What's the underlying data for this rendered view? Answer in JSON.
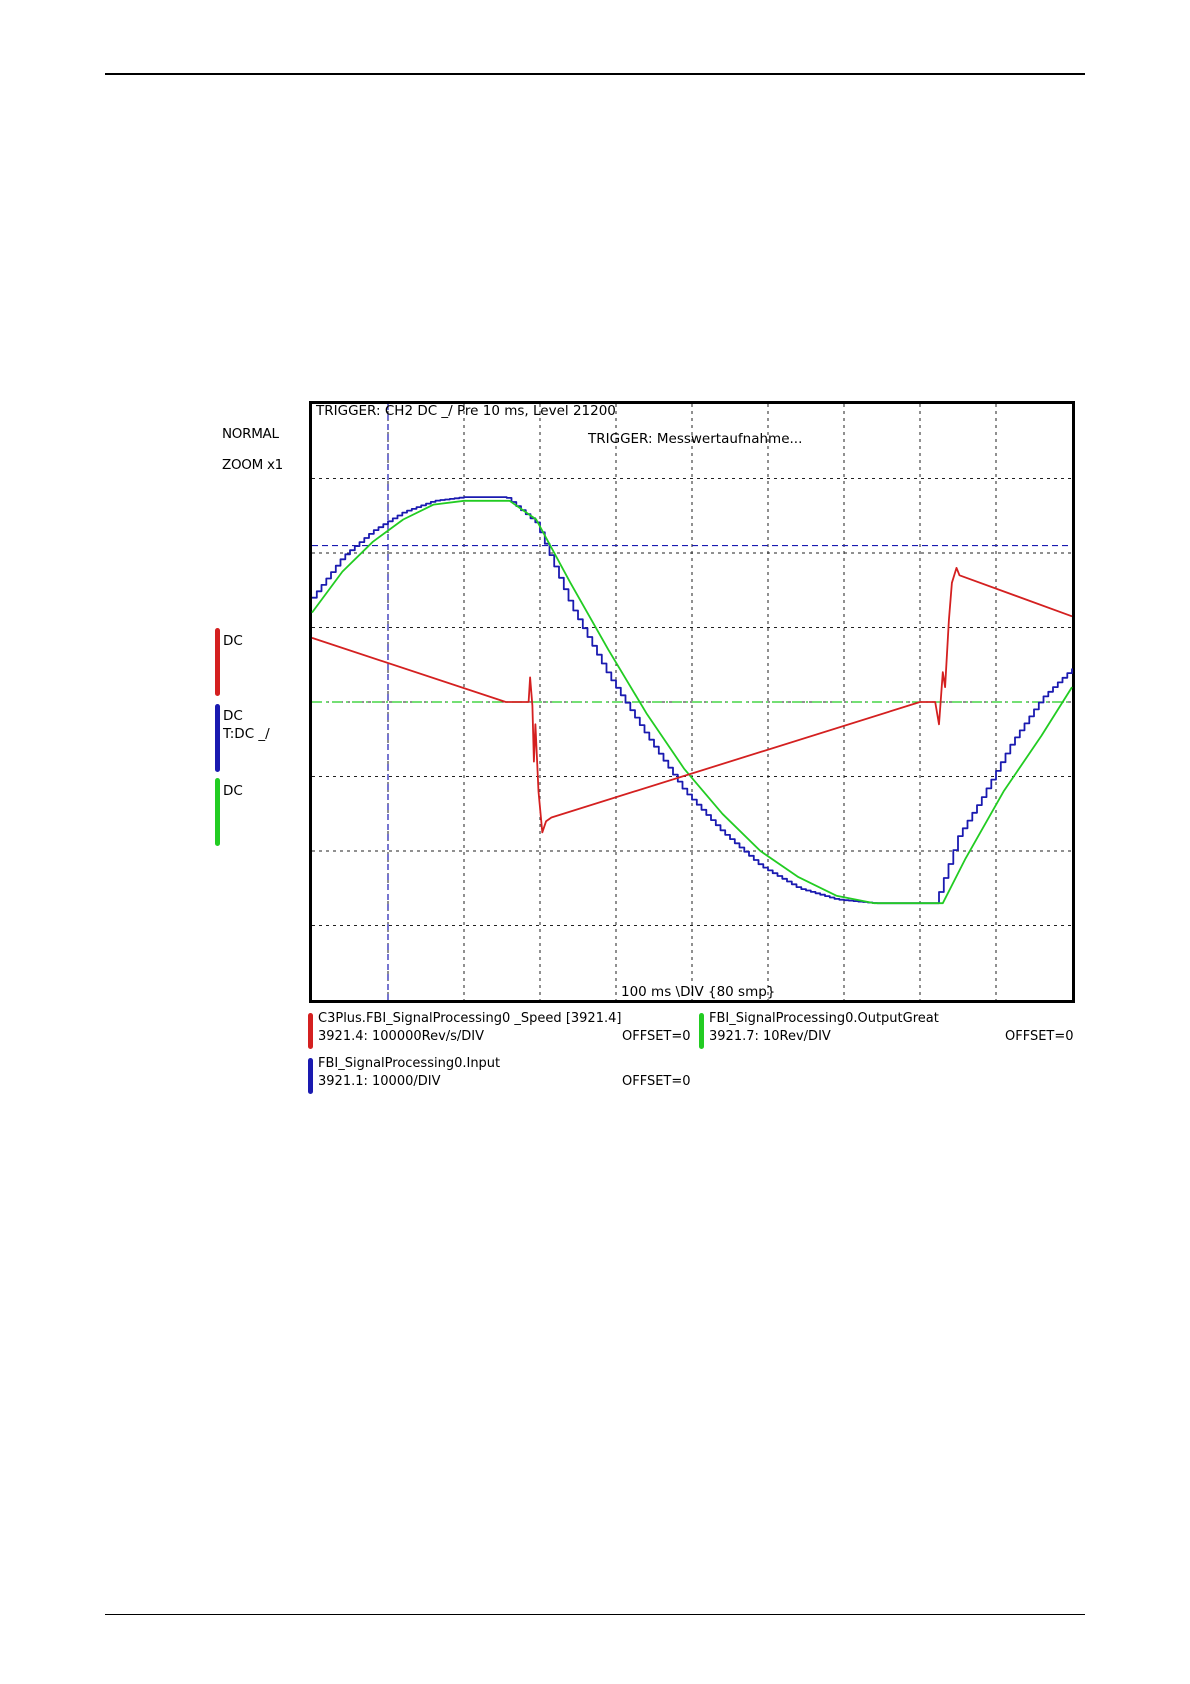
{
  "scope": {
    "mode": "NORMAL",
    "zoom": "ZOOM x1",
    "trigger_info": "TRIGGER: CH2 DC _/ Pre 10 ms, Level 21200",
    "trigger_status": "TRIGGER: Messwertaufnahme...",
    "timebase": "100 ms \\DIV {80 smp}"
  },
  "channels": [
    {
      "coupling": "DC",
      "trigger": "",
      "color": "#d42020"
    },
    {
      "coupling": "DC",
      "trigger": "T:DC _/",
      "color": "#1a1ab0"
    },
    {
      "coupling": "DC",
      "trigger": "",
      "color": "#22cc22"
    }
  ],
  "legend": [
    {
      "name": "C3Plus.FBI_SignalProcessing0 _Speed  [3921.4]",
      "scale": "3921.4:  100000Rev/s/DIV",
      "offset": "OFFSET=0",
      "color": "#d42020"
    },
    {
      "name": "FBI_SignalProcessing0.OutputGreat",
      "scale": "3921.7:  10Rev/DIV",
      "offset": "OFFSET=0",
      "color": "#22cc22"
    },
    {
      "name": "FBI_SignalProcessing0.Input",
      "scale": "3921.1:  10000/DIV",
      "offset": "OFFSET=0",
      "color": "#1a1ab0"
    }
  ],
  "chart_data": {
    "type": "line",
    "x_unit": "div",
    "y_unit": "div",
    "xlim": [
      0,
      10
    ],
    "ylim": [
      -4,
      4
    ],
    "grid": true,
    "grid_divisions": {
      "x": 10,
      "y": 8
    },
    "trigger_marker_x": 1,
    "trigger_level_y": 2.1,
    "series": [
      {
        "name": "C3Plus.FBI_SignalProcessing0 _Speed  [3921.4]",
        "color": "#d42020",
        "points": [
          [
            0,
            0.86
          ],
          [
            2.55,
            0.0
          ],
          [
            2.85,
            0.0
          ],
          [
            2.87,
            0.33
          ],
          [
            2.9,
            -0.05
          ],
          [
            2.92,
            -0.8
          ],
          [
            2.94,
            -0.3
          ],
          [
            2.98,
            -1.2
          ],
          [
            3.03,
            -1.75
          ],
          [
            3.08,
            -1.6
          ],
          [
            3.15,
            -1.55
          ],
          [
            8.0,
            0.0
          ],
          [
            8.2,
            0.0
          ],
          [
            8.25,
            -0.3
          ],
          [
            8.3,
            0.4
          ],
          [
            8.33,
            0.2
          ],
          [
            8.38,
            1.1
          ],
          [
            8.42,
            1.6
          ],
          [
            8.48,
            1.8
          ],
          [
            8.52,
            1.7
          ],
          [
            10,
            1.15
          ]
        ]
      },
      {
        "name": "FBI_SignalProcessing0.OutputGreat",
        "color": "#22cc22",
        "points": [
          [
            0,
            1.2
          ],
          [
            0.4,
            1.75
          ],
          [
            0.8,
            2.15
          ],
          [
            1.2,
            2.45
          ],
          [
            1.6,
            2.65
          ],
          [
            2.0,
            2.7
          ],
          [
            2.6,
            2.7
          ],
          [
            2.95,
            2.45
          ],
          [
            3.4,
            1.6
          ],
          [
            3.9,
            0.7
          ],
          [
            4.4,
            -0.15
          ],
          [
            4.9,
            -0.9
          ],
          [
            5.4,
            -1.5
          ],
          [
            5.9,
            -2.0
          ],
          [
            6.4,
            -2.35
          ],
          [
            6.9,
            -2.6
          ],
          [
            7.4,
            -2.7
          ],
          [
            8.3,
            -2.7
          ],
          [
            8.6,
            -2.1
          ],
          [
            9.1,
            -1.2
          ],
          [
            9.6,
            -0.45
          ],
          [
            10,
            0.2
          ]
        ]
      },
      {
        "name": "FBI_SignalProcessing0.Input",
        "color": "#1a1ab0",
        "points": [
          [
            0,
            1.4
          ],
          [
            0.4,
            1.95
          ],
          [
            0.8,
            2.3
          ],
          [
            1.2,
            2.55
          ],
          [
            1.6,
            2.7
          ],
          [
            2.0,
            2.75
          ],
          [
            2.55,
            2.75
          ],
          [
            2.95,
            2.4
          ],
          [
            3.4,
            1.3
          ],
          [
            3.9,
            0.35
          ],
          [
            4.4,
            -0.45
          ],
          [
            4.9,
            -1.2
          ],
          [
            5.4,
            -1.75
          ],
          [
            5.9,
            -2.2
          ],
          [
            6.4,
            -2.5
          ],
          [
            6.9,
            -2.65
          ],
          [
            7.4,
            -2.7
          ],
          [
            8.2,
            -2.7
          ],
          [
            8.5,
            -1.8
          ],
          [
            8.8,
            -1.3
          ],
          [
            9.2,
            -0.55
          ],
          [
            9.6,
            0.05
          ],
          [
            10,
            0.45
          ]
        ]
      }
    ]
  }
}
